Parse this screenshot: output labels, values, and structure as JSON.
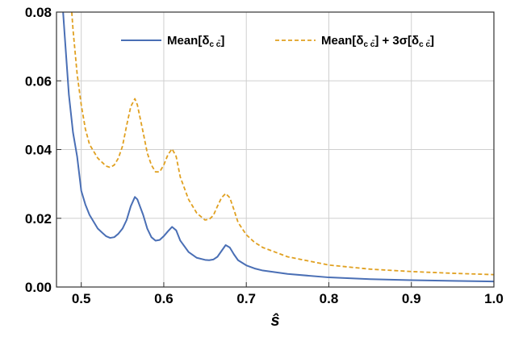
{
  "chart_data": {
    "type": "line",
    "title": "",
    "xlabel": "ŝ",
    "ylabel": "",
    "xlim": [
      0.47,
      1.0
    ],
    "ylim": [
      0.0,
      0.08
    ],
    "grid": true,
    "legend_position": "top-right",
    "x_ticks": [
      "0.5",
      "0.6",
      "0.7",
      "0.8",
      "0.9",
      "1.0"
    ],
    "y_ticks": [
      "0.00",
      "0.02",
      "0.04",
      "0.06",
      "0.08"
    ],
    "x_tick_values": [
      0.5,
      0.6,
      0.7,
      0.8,
      0.9,
      1.0
    ],
    "y_tick_values": [
      0.0,
      0.02,
      0.04,
      0.06,
      0.08
    ],
    "series": [
      {
        "name": "Mean[δ_{c c̄}]",
        "legend_main": "Mean[δ",
        "legend_sub": "c c̄",
        "legend_tail": "]",
        "color": "#4a6fb5",
        "style": "solid",
        "x": [
          0.478,
          0.48,
          0.485,
          0.49,
          0.495,
          0.5,
          0.505,
          0.51,
          0.52,
          0.53,
          0.535,
          0.54,
          0.545,
          0.55,
          0.555,
          0.56,
          0.565,
          0.568,
          0.575,
          0.58,
          0.585,
          0.59,
          0.595,
          0.6,
          0.605,
          0.61,
          0.615,
          0.62,
          0.63,
          0.64,
          0.65,
          0.655,
          0.66,
          0.665,
          0.67,
          0.675,
          0.68,
          0.685,
          0.69,
          0.7,
          0.71,
          0.72,
          0.75,
          0.8,
          0.85,
          0.9,
          0.95,
          1.0
        ],
        "y": [
          0.08,
          0.073,
          0.056,
          0.045,
          0.038,
          0.028,
          0.024,
          0.021,
          0.017,
          0.0148,
          0.0143,
          0.0145,
          0.0155,
          0.017,
          0.0195,
          0.0235,
          0.0262,
          0.0255,
          0.021,
          0.017,
          0.0145,
          0.0135,
          0.0137,
          0.0148,
          0.0162,
          0.0175,
          0.0165,
          0.0135,
          0.0102,
          0.0085,
          0.0079,
          0.0078,
          0.008,
          0.0088,
          0.0105,
          0.0122,
          0.0115,
          0.0095,
          0.0078,
          0.0063,
          0.0054,
          0.0048,
          0.0038,
          0.0028,
          0.0023,
          0.002,
          0.0018,
          0.0016
        ]
      },
      {
        "name": "Mean[δ_{c c̄}] + 3σ[δ_{c c̄}]",
        "legend_main": "Mean[δ",
        "legend_sub": "c c̄",
        "legend_tail": "] + 3σ[δ",
        "legend_sub2": "c c̄",
        "legend_tail2": "]",
        "color": "#e0a020",
        "style": "dashed",
        "x": [
          0.4885,
          0.49,
          0.495,
          0.5,
          0.505,
          0.51,
          0.52,
          0.53,
          0.535,
          0.54,
          0.545,
          0.55,
          0.555,
          0.56,
          0.565,
          0.568,
          0.575,
          0.58,
          0.585,
          0.59,
          0.595,
          0.6,
          0.605,
          0.61,
          0.615,
          0.62,
          0.63,
          0.64,
          0.65,
          0.655,
          0.66,
          0.665,
          0.67,
          0.675,
          0.68,
          0.685,
          0.69,
          0.7,
          0.71,
          0.72,
          0.75,
          0.8,
          0.85,
          0.9,
          0.95,
          1.0
        ],
        "y": [
          0.08,
          0.075,
          0.062,
          0.053,
          0.046,
          0.0415,
          0.0375,
          0.0352,
          0.0348,
          0.0355,
          0.0375,
          0.041,
          0.047,
          0.0525,
          0.0548,
          0.053,
          0.045,
          0.039,
          0.0355,
          0.0335,
          0.0335,
          0.0355,
          0.0385,
          0.0402,
          0.038,
          0.032,
          0.0255,
          0.0215,
          0.0195,
          0.0197,
          0.0208,
          0.0235,
          0.026,
          0.0272,
          0.026,
          0.0225,
          0.0188,
          0.0152,
          0.013,
          0.0115,
          0.0088,
          0.0064,
          0.0052,
          0.0045,
          0.004,
          0.0036
        ]
      }
    ]
  }
}
